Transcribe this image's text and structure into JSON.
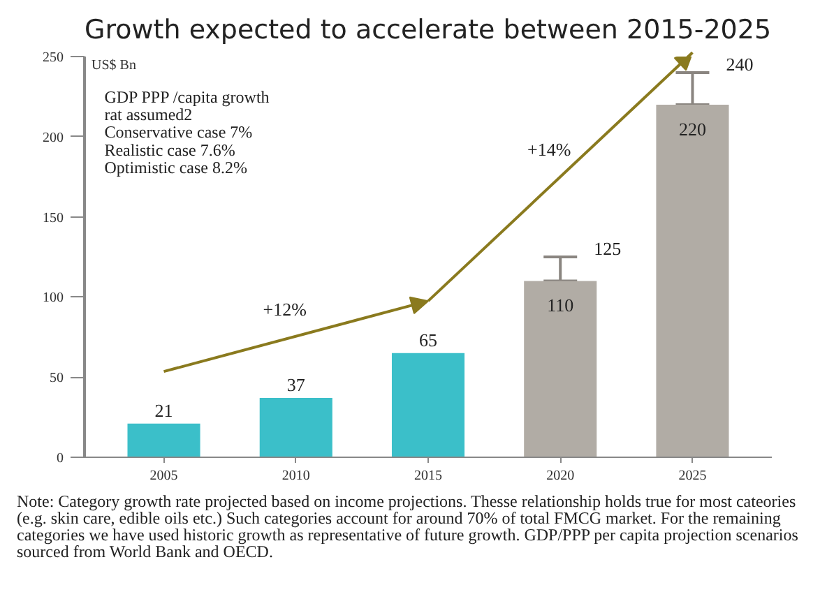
{
  "chart_data": {
    "type": "bar",
    "title": "Growth expected to accelerate between 2015-2025",
    "ylabel": "US$ Bn",
    "categories": [
      "2005",
      "2010",
      "2015",
      "2020",
      "2025"
    ],
    "values": [
      21,
      37,
      65,
      110,
      220
    ],
    "colors": [
      "#3bbfc9",
      "#3bbfc9",
      "#3bbfc9",
      "#b1aca5",
      "#b1aca5"
    ],
    "errors": [
      null,
      null,
      null,
      [
        110,
        125
      ],
      [
        220,
        240
      ]
    ],
    "data_labels": true,
    "ylim": [
      0,
      250
    ],
    "yticks": [
      0,
      50,
      100,
      150,
      200,
      250
    ],
    "grid": false,
    "annotations": [
      "GDP PPP /capita growth\nrat assumed2\nConservative case 7%\nRealistic case 7.6%\nOptimistic case 8.2%",
      "+12%",
      "+14%",
      {
        "text": "125",
        "x": "2020",
        "y": 125
      },
      {
        "text": "240",
        "x": "2025",
        "y": 240
      },
      "Note: Category growth rate projected based on income projections. Thesse relationship holds true for most cateories (e.g. skin care, edible oils etc.) Such categories account for around 70% of total FMCG market. For the remaining categories we have used historic growth as representative of future growth. GDP/PPP per capita projection scenarios sourced from World Bank and OECD."
    ]
  }
}
